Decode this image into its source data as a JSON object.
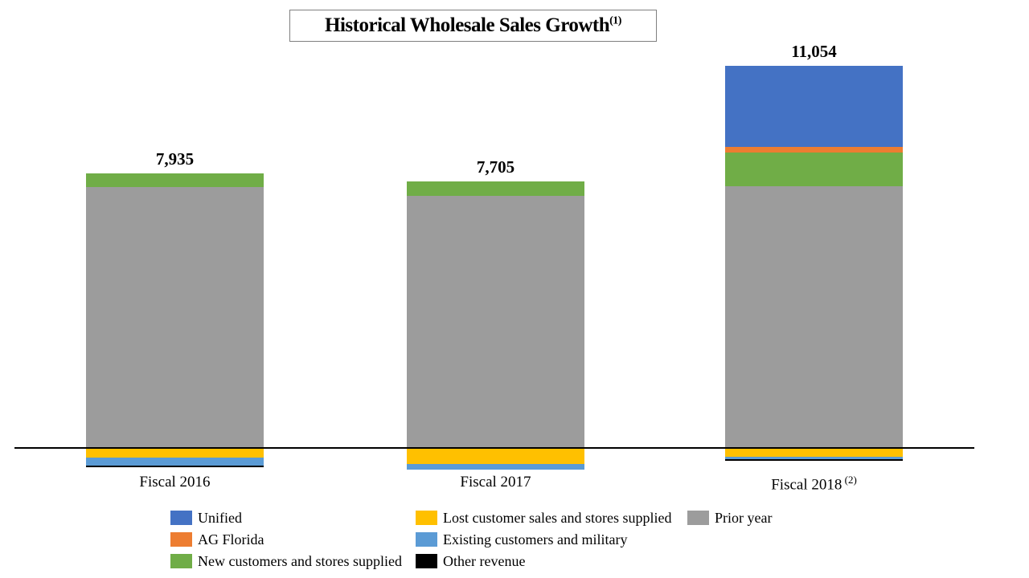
{
  "chart_data": {
    "type": "bar",
    "stacked": true,
    "title": "Historical Wholesale Sales Growth",
    "title_superscript": "(1)",
    "categories": [
      {
        "label": "Fiscal 2016",
        "superscript": "",
        "total_label": "7,935"
      },
      {
        "label": "Fiscal 2017",
        "superscript": "",
        "total_label": "7,705"
      },
      {
        "label": "Fiscal 2018",
        "superscript": "(2)",
        "total_label": "11,054"
      }
    ],
    "series": [
      {
        "name": "Unified",
        "color": "#4472C4",
        "values": [
          0,
          0,
          2350
        ]
      },
      {
        "name": "AG Florida",
        "color": "#ED7D31",
        "values": [
          0,
          0,
          165
        ]
      },
      {
        "name": "New customers and stores supplied",
        "color": "#70AD47",
        "values": [
          390,
          425,
          975
        ]
      },
      {
        "name": "Prior year",
        "color": "#9C9C9C",
        "values": [
          7545,
          7280,
          7564
        ]
      },
      {
        "name": "Lost customer sales and stores supplied",
        "color": "#FFC000",
        "values": [
          -250,
          -440,
          -235
        ]
      },
      {
        "name": "Existing customers and military",
        "color": "#5B9BD5",
        "values": [
          -230,
          -160,
          -70
        ]
      },
      {
        "name": "Other revenue",
        "color": "#000000",
        "values": [
          -45,
          0,
          -45
        ]
      }
    ],
    "grid": false,
    "zero_line": true,
    "legend_position": "bottom"
  },
  "legend": {
    "columns": [
      {
        "items": [
          "Unified",
          "AG Florida",
          "New customers and stores supplied"
        ]
      },
      {
        "items": [
          "Lost customer sales and stores supplied",
          "Existing customers and military",
          "Other revenue"
        ]
      },
      {
        "items": [
          "Prior year"
        ]
      }
    ]
  }
}
